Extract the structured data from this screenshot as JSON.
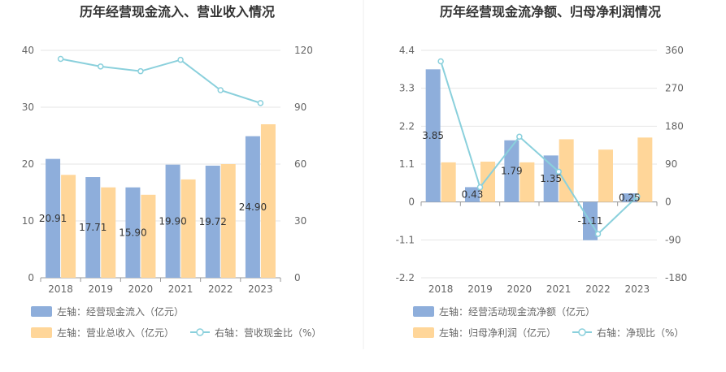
{
  "chart_data": [
    {
      "type": "bar",
      "title": "历年经营现金流入、营业收入情况",
      "categories": [
        "2018",
        "2019",
        "2020",
        "2021",
        "2022",
        "2023"
      ],
      "left_axis": {
        "ylim": [
          0,
          40
        ],
        "ticks": [
          "0",
          "10",
          "20",
          "30",
          "40"
        ]
      },
      "right_axis": {
        "ylim": [
          0,
          120
        ],
        "ticks": [
          "0",
          "30",
          "60",
          "90",
          "120"
        ]
      },
      "series": [
        {
          "name": "左轴：经营现金流入（亿元）",
          "type": "bar",
          "axis": "left",
          "color": "#8eaedb",
          "values": [
            20.91,
            17.71,
            15.9,
            19.9,
            19.72,
            24.9
          ],
          "labels": [
            "20.91",
            "17.71",
            "15.90",
            "19.90",
            "19.72",
            "24.90"
          ]
        },
        {
          "name": "左轴：营业总收入（亿元）",
          "type": "bar",
          "axis": "left",
          "color": "#ffd699",
          "values": [
            18.1,
            15.9,
            14.6,
            17.3,
            20.0,
            27.0
          ]
        },
        {
          "name": "右轴：营收现金比（%）",
          "type": "line",
          "axis": "right",
          "color": "#8ad0dc",
          "values": [
            115.5,
            111.5,
            109.0,
            115.0,
            99.0,
            92.2
          ]
        }
      ],
      "legend": [
        [
          "左轴：经营现金流入（亿元）"
        ],
        [
          "左轴：营业总收入（亿元）",
          "右轴：营收现金比（%）"
        ]
      ]
    },
    {
      "type": "bar",
      "title": "历年经营现金流净额、归母净利润情况",
      "categories": [
        "2018",
        "2019",
        "2020",
        "2021",
        "2022",
        "2023"
      ],
      "left_axis": {
        "ylim": [
          -2.2,
          4.4
        ],
        "ticks": [
          "-2.2",
          "-1.1",
          "0",
          "1.1",
          "2.2",
          "3.3",
          "4.4"
        ]
      },
      "right_axis": {
        "ylim": [
          -180,
          360
        ],
        "ticks": [
          "-180",
          "-90",
          "0",
          "90",
          "180",
          "270",
          "360"
        ]
      },
      "series": [
        {
          "name": "左轴：经营活动现金流净额（亿元）",
          "type": "bar",
          "axis": "left",
          "color": "#8eaedb",
          "values": [
            3.85,
            0.43,
            1.79,
            1.35,
            -1.11,
            0.25
          ],
          "labels": [
            "3.85",
            "0.43",
            "1.79",
            "1.35",
            "-1.11",
            "0.25"
          ]
        },
        {
          "name": "左轴：归母净利润（亿元）",
          "type": "bar",
          "axis": "left",
          "color": "#ffd699",
          "values": [
            1.15,
            1.17,
            1.15,
            1.82,
            1.52,
            1.87
          ]
        },
        {
          "name": "右轴：净现比（%）",
          "type": "line",
          "axis": "right",
          "color": "#8ad0dc",
          "values": [
            334,
            35,
            155,
            72,
            -76,
            13
          ]
        }
      ],
      "legend": [
        [
          "左轴：经营活动现金流净额（亿元）"
        ],
        [
          "左轴：归母净利润（亿元）",
          "右轴：净现比（%）"
        ]
      ]
    }
  ]
}
